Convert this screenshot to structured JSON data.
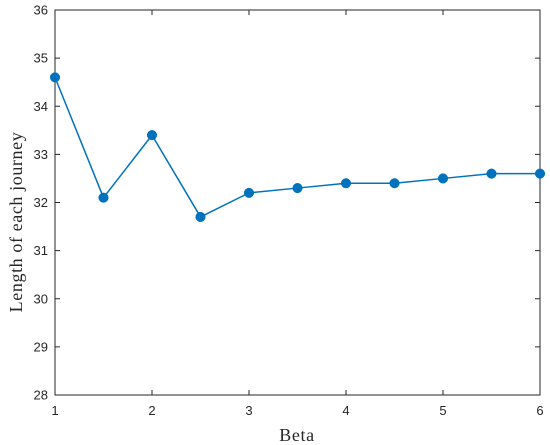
{
  "chart_data": {
    "type": "line",
    "title": "",
    "xlabel": "Beta",
    "ylabel": "Length of each journey",
    "xlim": [
      1,
      6
    ],
    "ylim": [
      28,
      36
    ],
    "xticks": [
      "1",
      "2",
      "3",
      "4",
      "5",
      "6"
    ],
    "yticks": [
      "28",
      "29",
      "30",
      "31",
      "32",
      "33",
      "34",
      "35",
      "36"
    ],
    "grid": false,
    "series": [
      {
        "x": [
          1,
          1.5,
          2,
          2.5,
          3,
          3.5,
          4,
          4.5,
          5,
          5.5,
          6
        ],
        "values": [
          34.6,
          32.1,
          33.4,
          31.7,
          32.2,
          32.3,
          32.4,
          32.4,
          32.5,
          32.6,
          32.6
        ],
        "color": "#0072BD",
        "marker": "circle"
      }
    ]
  }
}
